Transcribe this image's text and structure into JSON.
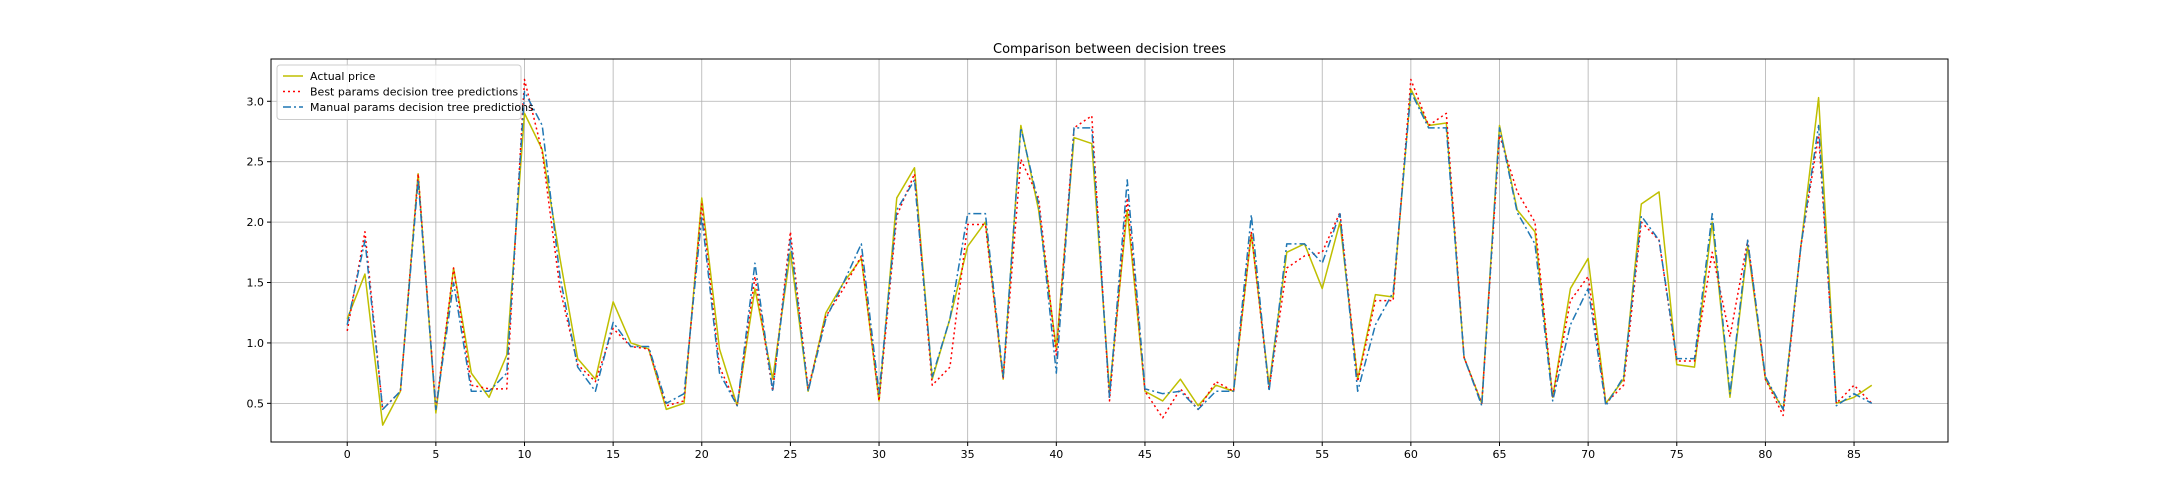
{
  "chart_data": {
    "type": "line",
    "title": "Comparison between decision trees",
    "xlabel": "",
    "ylabel": "",
    "xlim": [
      -4.3,
      90.3
    ],
    "ylim": [
      0.18,
      3.35
    ],
    "x_ticks": [
      0,
      5,
      10,
      15,
      20,
      25,
      30,
      35,
      40,
      45,
      50,
      55,
      60,
      65,
      70,
      75,
      80,
      85
    ],
    "y_ticks": [
      0.5,
      1.0,
      1.5,
      2.0,
      2.5,
      3.0
    ],
    "y_tick_labels": [
      "0.5",
      "1.0",
      "1.5",
      "2.0",
      "2.5",
      "3.0"
    ],
    "grid": true,
    "legend_position": "top-left",
    "series": [
      {
        "name": "Actual price",
        "color": "#bfbf00",
        "style": "solid",
        "values": [
          1.2,
          1.57,
          0.32,
          0.6,
          2.4,
          0.42,
          1.62,
          0.75,
          0.55,
          0.9,
          2.9,
          2.6,
          1.7,
          0.87,
          0.7,
          1.34,
          1.0,
          0.95,
          0.45,
          0.5,
          2.2,
          0.95,
          0.48,
          1.45,
          0.7,
          1.75,
          0.6,
          1.25,
          1.5,
          1.7,
          0.52,
          2.2,
          2.45,
          0.7,
          1.2,
          1.8,
          2.0,
          0.7,
          2.8,
          2.1,
          0.95,
          2.7,
          2.65,
          0.6,
          2.1,
          0.6,
          0.52,
          0.7,
          0.48,
          0.65,
          0.6,
          1.9,
          0.65,
          1.75,
          1.82,
          1.45,
          2.0,
          0.7,
          1.4,
          1.38,
          3.1,
          2.8,
          2.82,
          0.88,
          0.5,
          2.8,
          2.1,
          1.92,
          0.55,
          1.45,
          1.7,
          0.5,
          0.7,
          2.15,
          2.25,
          0.82,
          0.8,
          2.0,
          0.55,
          1.8,
          0.7,
          0.45,
          1.8,
          3.03,
          0.5,
          0.55,
          0.65
        ]
      },
      {
        "name": "Best params decision tree predictions",
        "color": "#ff0000",
        "style": "dotted",
        "values": [
          1.1,
          1.92,
          0.45,
          0.6,
          2.4,
          0.45,
          1.62,
          0.65,
          0.62,
          0.62,
          3.18,
          2.58,
          1.45,
          0.82,
          0.68,
          1.12,
          0.97,
          0.95,
          0.48,
          0.52,
          2.15,
          0.8,
          0.48,
          1.55,
          0.6,
          1.92,
          0.62,
          1.22,
          1.45,
          1.72,
          0.52,
          2.05,
          2.4,
          0.65,
          0.8,
          1.98,
          1.98,
          0.7,
          2.52,
          2.2,
          0.9,
          2.78,
          2.88,
          0.52,
          2.2,
          0.6,
          0.38,
          0.62,
          0.45,
          0.68,
          0.6,
          1.92,
          0.62,
          1.62,
          1.72,
          1.75,
          2.08,
          0.68,
          1.35,
          1.35,
          3.18,
          2.8,
          2.9,
          0.88,
          0.5,
          2.72,
          2.25,
          2.0,
          0.55,
          1.35,
          1.55,
          0.5,
          0.65,
          2.0,
          1.85,
          0.85,
          0.85,
          1.75,
          1.05,
          1.85,
          0.7,
          0.4,
          1.8,
          2.72,
          0.5,
          0.65,
          0.5
        ]
      },
      {
        "name": "Manual params decision tree predictions",
        "color": "#1f77b4",
        "style": "dashdot",
        "values": [
          1.15,
          1.85,
          0.45,
          0.6,
          2.35,
          0.45,
          1.5,
          0.6,
          0.6,
          0.75,
          3.08,
          2.8,
          1.55,
          0.8,
          0.6,
          1.17,
          0.97,
          0.97,
          0.5,
          0.58,
          2.05,
          0.75,
          0.48,
          1.66,
          0.6,
          1.85,
          0.6,
          1.2,
          1.5,
          1.82,
          0.58,
          2.1,
          2.35,
          0.72,
          1.2,
          2.07,
          2.07,
          0.72,
          2.78,
          2.15,
          0.75,
          2.78,
          2.78,
          0.55,
          2.35,
          0.62,
          0.58,
          0.6,
          0.45,
          0.6,
          0.6,
          2.06,
          0.6,
          1.82,
          1.82,
          1.66,
          2.07,
          0.6,
          1.15,
          1.42,
          3.08,
          2.78,
          2.78,
          0.88,
          0.48,
          2.78,
          2.08,
          1.82,
          0.52,
          1.15,
          1.45,
          0.48,
          0.72,
          2.05,
          1.85,
          0.87,
          0.87,
          2.07,
          0.58,
          1.85,
          0.72,
          0.45,
          1.8,
          2.8,
          0.48,
          0.58,
          0.5
        ]
      }
    ]
  }
}
